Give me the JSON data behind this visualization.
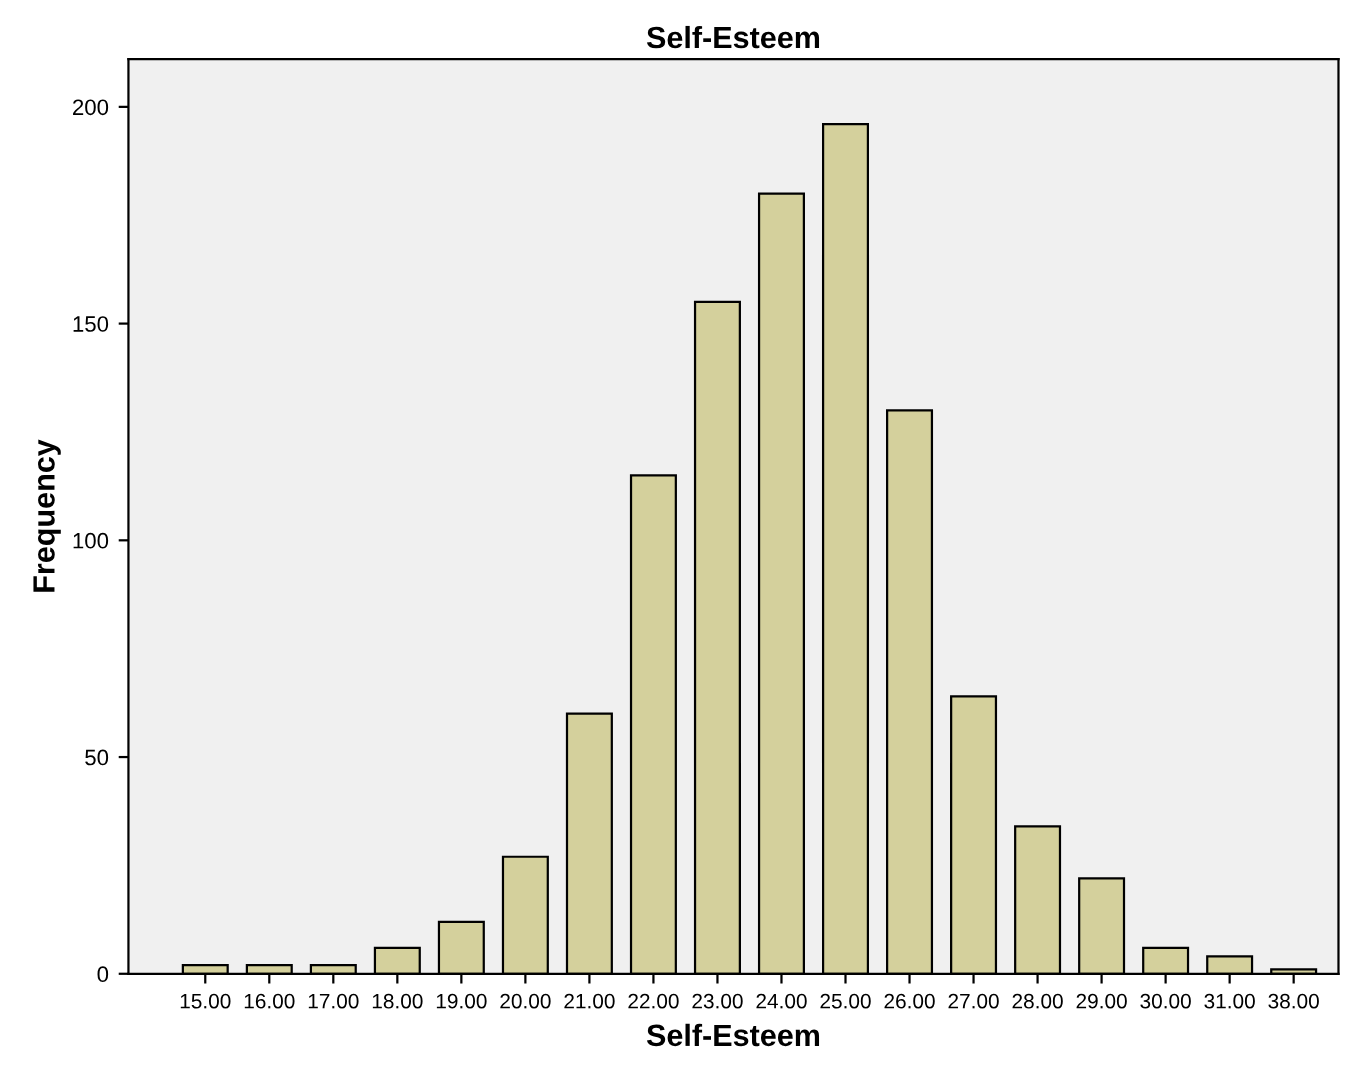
{
  "chart_data": {
    "type": "bar",
    "title": "Self-Esteem",
    "xlabel": "Self-Esteem",
    "ylabel": "Frequency",
    "categories": [
      "15.00",
      "16.00",
      "17.00",
      "18.00",
      "19.00",
      "20.00",
      "21.00",
      "22.00",
      "23.00",
      "24.00",
      "25.00",
      "26.00",
      "27.00",
      "28.00",
      "29.00",
      "30.00",
      "31.00",
      "38.00"
    ],
    "values": [
      2,
      2,
      2,
      6,
      12,
      27,
      60,
      115,
      155,
      180,
      196,
      130,
      64,
      34,
      22,
      6,
      4,
      1
    ],
    "color": "#d4d09c",
    "ylim": [
      0,
      211
    ],
    "yticks": [
      0,
      50,
      100,
      150,
      200
    ],
    "grid": false,
    "legend": false
  }
}
